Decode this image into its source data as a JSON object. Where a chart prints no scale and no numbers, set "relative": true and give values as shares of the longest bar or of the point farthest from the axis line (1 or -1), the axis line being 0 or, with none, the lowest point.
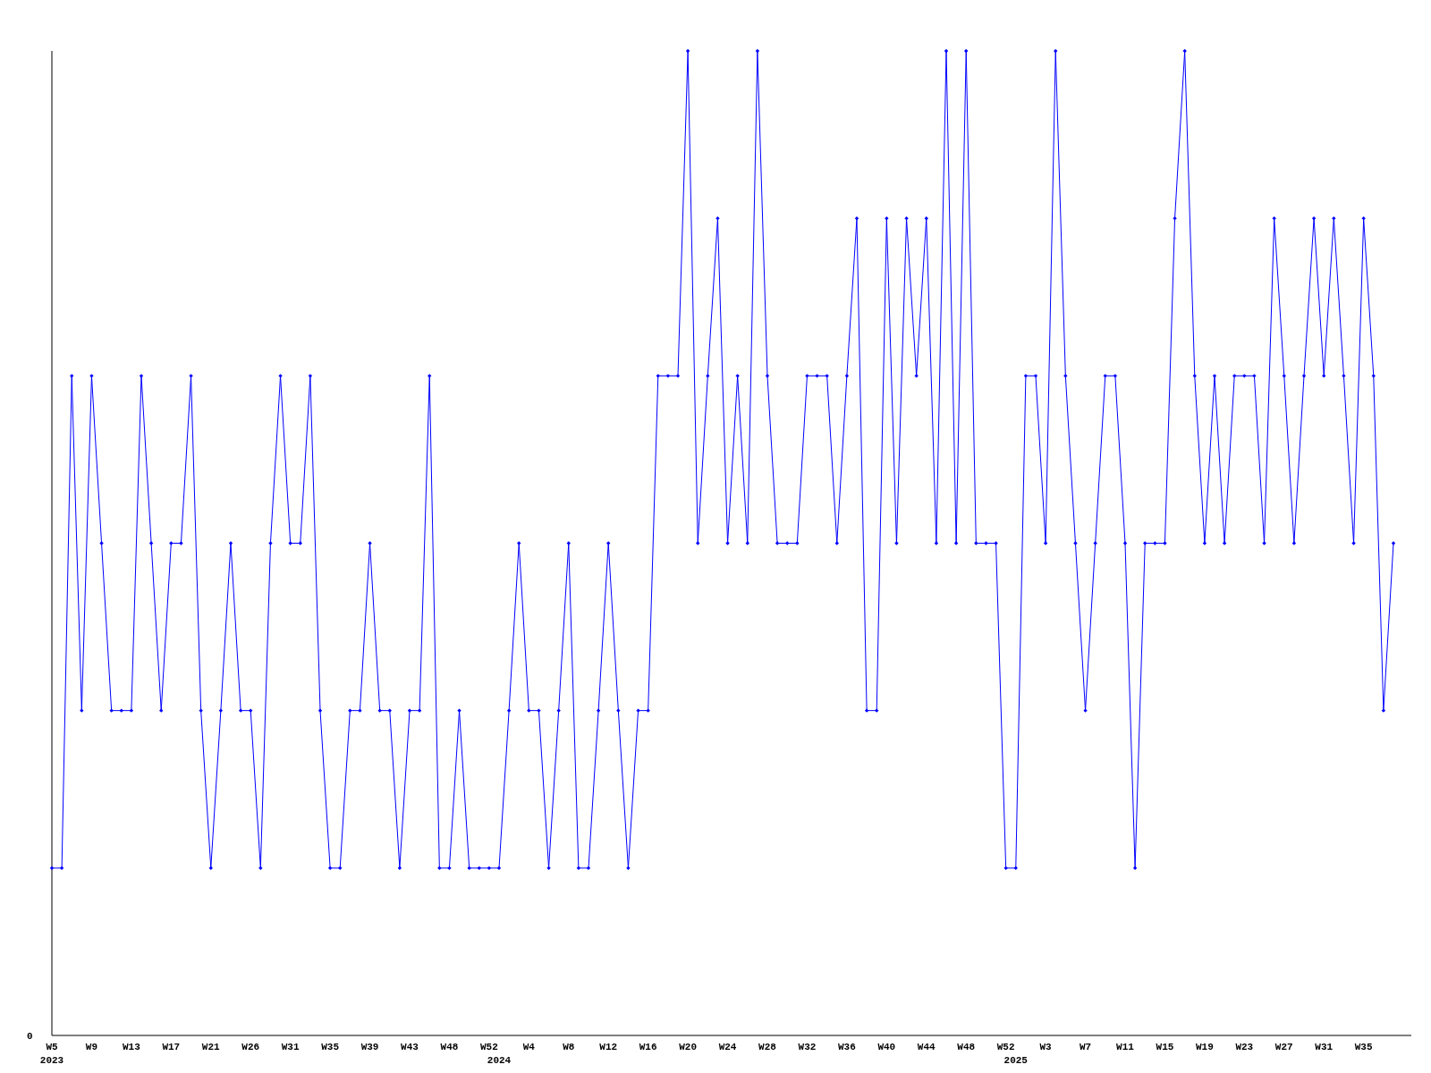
{
  "chart_data": {
    "type": "line",
    "relative": true,
    "color": "#0000ff",
    "marker": "diamond",
    "grid": false,
    "annotations": [
      "0"
    ],
    "categories": [
      "W5\n2023",
      null,
      null,
      null,
      "W9",
      null,
      null,
      null,
      "W13",
      null,
      null,
      null,
      "W17",
      null,
      null,
      null,
      "W21",
      null,
      null,
      null,
      "W26",
      null,
      null,
      null,
      "W31",
      null,
      null,
      null,
      "W35",
      null,
      null,
      null,
      "W39",
      null,
      null,
      null,
      "W43",
      null,
      null,
      null,
      "W48",
      null,
      null,
      null,
      "W52",
      "\n2024",
      null,
      null,
      "W4",
      null,
      null,
      null,
      "W8",
      null,
      null,
      null,
      "W12",
      null,
      null,
      null,
      "W16",
      null,
      null,
      null,
      "W20",
      null,
      null,
      null,
      "W24",
      null,
      null,
      null,
      "W28",
      null,
      null,
      null,
      "W32",
      null,
      null,
      null,
      "W36",
      null,
      null,
      null,
      "W40",
      null,
      null,
      null,
      "W44",
      null,
      null,
      null,
      "W48",
      null,
      null,
      null,
      "W52",
      "\n2025",
      null,
      null,
      "W3",
      null,
      null,
      null,
      "W7",
      null,
      null,
      null,
      "W11",
      null,
      null,
      null,
      "W15",
      null,
      null,
      null,
      "W19",
      null,
      null,
      null,
      "W23",
      null,
      null,
      null,
      "W27",
      null,
      null,
      null,
      "W31",
      null,
      null,
      null,
      "W35",
      null,
      null,
      null
    ],
    "values": [
      0.17,
      0.17,
      0.67,
      0.33,
      0.67,
      0.5,
      0.33,
      0.33,
      0.33,
      0.67,
      0.5,
      0.33,
      0.5,
      0.5,
      0.67,
      0.33,
      0.17,
      0.33,
      0.5,
      0.33,
      0.33,
      0.17,
      0.5,
      0.67,
      0.5,
      0.5,
      0.67,
      0.33,
      0.17,
      0.17,
      0.33,
      0.33,
      0.5,
      0.33,
      0.33,
      0.17,
      0.33,
      0.33,
      0.67,
      0.17,
      0.17,
      0.33,
      0.17,
      0.17,
      0.17,
      0.17,
      0.33,
      0.5,
      0.33,
      0.33,
      0.17,
      0.33,
      0.5,
      0.17,
      0.17,
      0.33,
      0.5,
      0.33,
      0.17,
      0.33,
      0.33,
      0.67,
      0.67,
      0.67,
      1,
      0.5,
      0.67,
      0.83,
      0.5,
      0.67,
      0.5,
      1,
      0.67,
      0.5,
      0.5,
      0.5,
      0.67,
      0.67,
      0.67,
      0.5,
      0.67,
      0.83,
      0.33,
      0.33,
      0.83,
      0.5,
      0.83,
      0.67,
      0.83,
      0.5,
      1,
      0.5,
      1,
      0.5,
      0.5,
      0.5,
      0.17,
      0.17,
      0.67,
      0.67,
      0.5,
      1,
      0.67,
      0.5,
      0.33,
      0.5,
      0.67,
      0.67,
      0.5,
      0.17,
      0.5,
      0.5,
      0.5,
      0.83,
      1,
      0.67,
      0.5,
      0.67,
      0.5,
      0.67,
      0.67,
      0.67,
      0.5,
      0.83,
      0.67,
      0.5,
      0.67,
      0.83,
      0.67,
      0.83,
      0.67,
      0.5,
      0.83,
      0.67,
      0.33,
      0.5
    ]
  }
}
